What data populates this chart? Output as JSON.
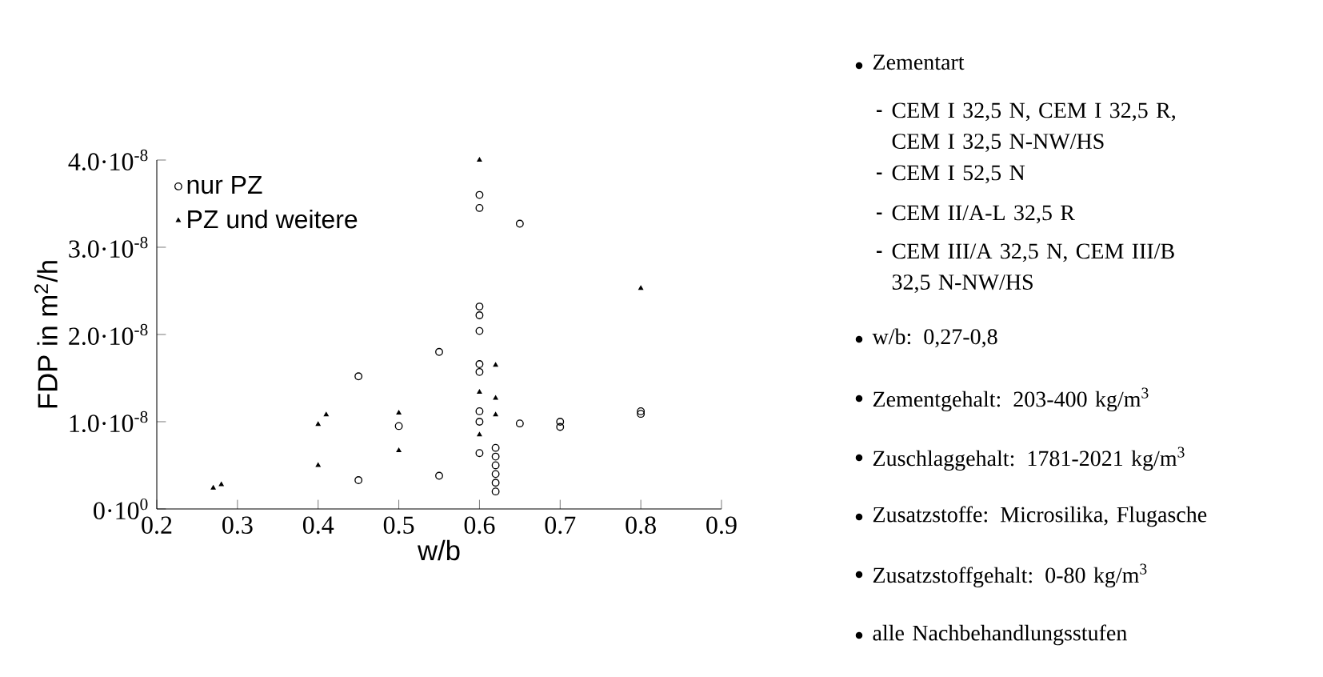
{
  "chart_data": {
    "type": "scatter",
    "xlabel": "w/b",
    "ylabel": "FDP in m$^{2}$/h",
    "xlim": [
      0.2,
      0.9
    ],
    "xticks": [
      0.2,
      0.3,
      0.4,
      0.5,
      0.6,
      0.7,
      0.8,
      0.9
    ],
    "ylim": [
      0,
      4e-08
    ],
    "yticks": [
      {
        "value": 0,
        "label": "0·10$^{0}$"
      },
      {
        "value": 1e-08,
        "label": "1.0·10$^{-8}$"
      },
      {
        "value": 2e-08,
        "label": "2.0·10$^{-8}$"
      },
      {
        "value": 3e-08,
        "label": "3.0·10$^{-8}$"
      },
      {
        "value": 4e-08,
        "label": "4.0·10$^{-8}$"
      }
    ],
    "legend": "top left",
    "grid": false,
    "series": [
      {
        "name": "nur PZ",
        "color": "#000000",
        "marker": "circle",
        "x": [
          0.6,
          0.6,
          0.65,
          0.6,
          0.6,
          0.6,
          0.55,
          0.45,
          0.6,
          0.6,
          0.6,
          0.6,
          0.6,
          0.5,
          0.65,
          0.7,
          0.7,
          0.8,
          0.8,
          0.45,
          0.55,
          0.62,
          0.62,
          0.62,
          0.62,
          0.62,
          0.62
        ],
        "values": [
          3.6e-08,
          3.45e-08,
          3.27e-08,
          2.32e-08,
          2.22e-08,
          2.04e-08,
          1.8e-08,
          1.52e-08,
          1.66e-08,
          1.57e-08,
          1.12e-08,
          1e-08,
          6.4e-09,
          9.5e-09,
          9.8e-09,
          9.4e-09,
          1e-08,
          1.12e-08,
          1.09e-08,
          3.3e-09,
          3.8e-09,
          7e-09,
          6e-09,
          5e-09,
          4e-09,
          3e-09,
          2e-09
        ]
      },
      {
        "name": "PZ und weitere",
        "color": "#000000",
        "marker": "triangle",
        "x": [
          0.6,
          0.8,
          0.62,
          0.6,
          0.62,
          0.62,
          0.41,
          0.4,
          0.5,
          0.5,
          0.4,
          0.28,
          0.27,
          0.6
        ],
        "values": [
          4e-08,
          2.53e-08,
          1.65e-08,
          1.34e-08,
          1.27e-08,
          1.08e-08,
          1.08e-08,
          9.7e-09,
          1.1e-08,
          6.7e-09,
          5e-09,
          2.8e-09,
          2.4e-09,
          8.5e-09
        ]
      }
    ],
    "annotations": [
      "Zementart",
      "CEM I 32,5 N, CEM I 32,5 R, CEM I 32,5 N-NW/HS",
      "CEM I 52,5 N",
      "CEM II/A-L 32,5 R",
      "CEM III/A 32,5 N, CEM III/B 32,5 N-NW/HS",
      "w/b: 0,27-0,8",
      "Zementgehalt: 203-400 kg/m$^{3}$",
      "Zuschlaggehalt: 1781-2021 kg/m$^{3}$",
      "Zusatzstoffe: Microsilika, Flugasche",
      "Zusatzstoffgehalt: 0-80 kg/m$^{3}$",
      "alle Nachbehandlungsstufen"
    ]
  }
}
